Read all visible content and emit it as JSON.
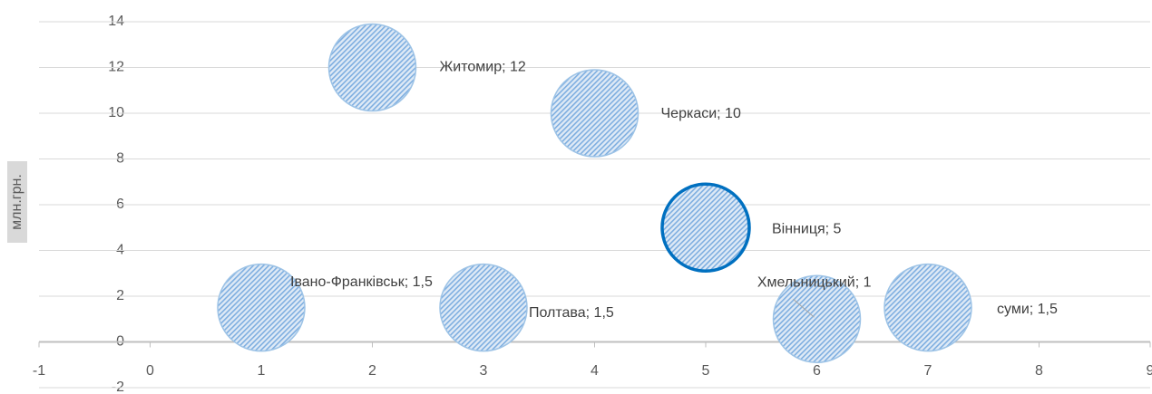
{
  "chart_data": {
    "type": "bubble",
    "y_label": "млн.грн.",
    "x": [
      1,
      2,
      3,
      4,
      5,
      6,
      7
    ],
    "values": [
      1.5,
      12,
      1.5,
      10,
      5,
      1,
      1.5
    ],
    "sizes": [
      1,
      1,
      1,
      1,
      1,
      1,
      1
    ],
    "data_labels": [
      "Івано-Франківськ; 1,5",
      "Житомир; 12",
      "Полтава; 1,5",
      "Черкаси; 10",
      "Вінниця; 5",
      "Хмельницький; 1",
      "суми; 1,5"
    ],
    "color": "#5b9bd5",
    "xlim": [
      -1,
      9
    ],
    "xticks": [
      -1,
      0,
      1,
      2,
      3,
      4,
      5,
      6,
      7,
      8,
      9
    ],
    "ylim": [
      -2,
      14
    ],
    "yticks": [
      -2,
      0,
      2,
      4,
      6,
      8,
      10,
      12,
      14
    ],
    "grid": true
  }
}
